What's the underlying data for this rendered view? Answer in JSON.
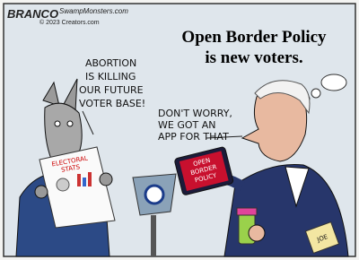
{
  "credits": {
    "artist": "BRANCO",
    "site": "SwampMonsters.com",
    "copyright": "© 2023 Creators.com"
  },
  "caption": {
    "lines": [
      "Open Border Policy",
      "is new voters."
    ]
  },
  "donkey_speech": {
    "lines": [
      "ABORTION",
      "IS KILLING",
      "OUR FUTURE",
      "VOTER BASE!"
    ]
  },
  "biden_speech": {
    "lines": [
      "DON'T WORRY,",
      "WE GOT AN",
      "APP FOR THAT"
    ]
  },
  "chart_sign": {
    "lines": [
      "ELECTORAL",
      "STATS"
    ]
  },
  "tablet": {
    "lines": [
      "OPEN",
      "BORDER",
      "POLICY"
    ]
  },
  "tag": "JOE"
}
